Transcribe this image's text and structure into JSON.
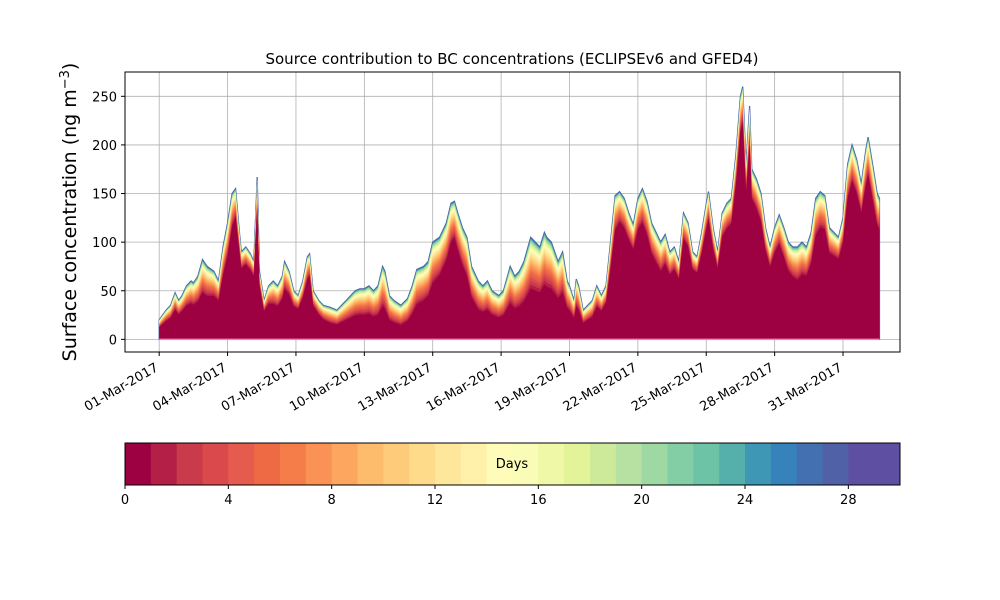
{
  "chart_data": {
    "type": "area",
    "title": "Source contribution to BC concentrations (ECLIPSEv6 and GFED4)",
    "ylabel_main": "Surface concentration (ng m",
    "ylabel_sup": "−3",
    "ylabel_close": ")",
    "xlabel": "",
    "ylim": [
      -13,
      275
    ],
    "y_ticks": [
      0,
      50,
      100,
      150,
      200,
      250
    ],
    "x_ticks": [
      "01-Mar-2017",
      "04-Mar-2017",
      "07-Mar-2017",
      "10-Mar-2017",
      "13-Mar-2017",
      "16-Mar-2017",
      "19-Mar-2017",
      "22-Mar-2017",
      "25-Mar-2017",
      "28-Mar-2017",
      "31-Mar-2017"
    ],
    "x_range_days": [
      -1.5,
      32.5
    ],
    "grid": true,
    "series_note": "stacked contributions by emission age (days 0-30)",
    "total": [
      [
        0.0,
        20
      ],
      [
        0.3,
        30
      ],
      [
        0.5,
        35
      ],
      [
        0.7,
        48
      ],
      [
        0.85,
        40
      ],
      [
        1.0,
        45
      ],
      [
        1.2,
        55
      ],
      [
        1.4,
        60
      ],
      [
        1.5,
        58
      ],
      [
        1.7,
        65
      ],
      [
        1.9,
        82
      ],
      [
        2.1,
        75
      ],
      [
        2.4,
        70
      ],
      [
        2.6,
        60
      ],
      [
        2.8,
        95
      ],
      [
        3.0,
        120
      ],
      [
        3.2,
        150
      ],
      [
        3.35,
        155
      ],
      [
        3.5,
        115
      ],
      [
        3.6,
        90
      ],
      [
        3.8,
        95
      ],
      [
        4.0,
        88
      ],
      [
        4.15,
        80
      ],
      [
        4.3,
        167
      ],
      [
        4.4,
        70
      ],
      [
        4.6,
        40
      ],
      [
        4.8,
        55
      ],
      [
        5.0,
        60
      ],
      [
        5.2,
        55
      ],
      [
        5.4,
        65
      ],
      [
        5.5,
        80
      ],
      [
        5.7,
        70
      ],
      [
        5.9,
        50
      ],
      [
        6.1,
        45
      ],
      [
        6.3,
        60
      ],
      [
        6.5,
        85
      ],
      [
        6.6,
        88
      ],
      [
        6.75,
        50
      ],
      [
        7.0,
        40
      ],
      [
        7.2,
        35
      ],
      [
        7.5,
        33
      ],
      [
        7.8,
        30
      ],
      [
        8.0,
        35
      ],
      [
        8.2,
        40
      ],
      [
        8.4,
        45
      ],
      [
        8.6,
        50
      ],
      [
        8.8,
        52
      ],
      [
        9.0,
        52
      ],
      [
        9.2,
        55
      ],
      [
        9.4,
        50
      ],
      [
        9.6,
        55
      ],
      [
        9.8,
        75
      ],
      [
        9.9,
        70
      ],
      [
        10.1,
        45
      ],
      [
        10.3,
        40
      ],
      [
        10.6,
        35
      ],
      [
        10.9,
        42
      ],
      [
        11.1,
        55
      ],
      [
        11.3,
        72
      ],
      [
        11.6,
        75
      ],
      [
        11.8,
        80
      ],
      [
        12.0,
        100
      ],
      [
        12.3,
        105
      ],
      [
        12.6,
        120
      ],
      [
        12.8,
        140
      ],
      [
        12.95,
        142
      ],
      [
        13.1,
        130
      ],
      [
        13.3,
        115
      ],
      [
        13.5,
        105
      ],
      [
        13.7,
        75
      ],
      [
        14.0,
        60
      ],
      [
        14.2,
        55
      ],
      [
        14.4,
        60
      ],
      [
        14.6,
        50
      ],
      [
        14.9,
        45
      ],
      [
        15.1,
        50
      ],
      [
        15.4,
        75
      ],
      [
        15.6,
        65
      ],
      [
        15.8,
        70
      ],
      [
        16.0,
        80
      ],
      [
        16.3,
        105
      ],
      [
        16.5,
        100
      ],
      [
        16.7,
        95
      ],
      [
        16.9,
        110
      ],
      [
        17.0,
        105
      ],
      [
        17.2,
        100
      ],
      [
        17.5,
        80
      ],
      [
        17.7,
        90
      ],
      [
        17.9,
        60
      ],
      [
        18.0,
        55
      ],
      [
        18.2,
        40
      ],
      [
        18.3,
        62
      ],
      [
        18.4,
        55
      ],
      [
        18.6,
        30
      ],
      [
        18.8,
        35
      ],
      [
        19.0,
        40
      ],
      [
        19.2,
        55
      ],
      [
        19.4,
        45
      ],
      [
        19.6,
        55
      ],
      [
        19.8,
        100
      ],
      [
        20.0,
        148
      ],
      [
        20.2,
        152
      ],
      [
        20.4,
        145
      ],
      [
        20.6,
        130
      ],
      [
        20.8,
        118
      ],
      [
        21.0,
        145
      ],
      [
        21.2,
        155
      ],
      [
        21.4,
        142
      ],
      [
        21.6,
        120
      ],
      [
        21.8,
        110
      ],
      [
        22.0,
        100
      ],
      [
        22.2,
        108
      ],
      [
        22.4,
        90
      ],
      [
        22.6,
        95
      ],
      [
        22.8,
        80
      ],
      [
        23.0,
        130
      ],
      [
        23.2,
        120
      ],
      [
        23.4,
        90
      ],
      [
        23.6,
        85
      ],
      [
        23.8,
        110
      ],
      [
        24.0,
        140
      ],
      [
        24.1,
        152
      ],
      [
        24.3,
        115
      ],
      [
        24.5,
        90
      ],
      [
        24.7,
        130
      ],
      [
        24.9,
        140
      ],
      [
        25.1,
        145
      ],
      [
        25.3,
        190
      ],
      [
        25.5,
        250
      ],
      [
        25.6,
        260
      ],
      [
        25.75,
        180
      ],
      [
        25.9,
        240
      ],
      [
        26.0,
        175
      ],
      [
        26.2,
        165
      ],
      [
        26.4,
        150
      ],
      [
        26.6,
        115
      ],
      [
        26.8,
        95
      ],
      [
        27.0,
        115
      ],
      [
        27.2,
        128
      ],
      [
        27.4,
        115
      ],
      [
        27.6,
        100
      ],
      [
        27.8,
        95
      ],
      [
        28.0,
        95
      ],
      [
        28.2,
        100
      ],
      [
        28.4,
        95
      ],
      [
        28.6,
        110
      ],
      [
        28.8,
        145
      ],
      [
        29.0,
        152
      ],
      [
        29.2,
        148
      ],
      [
        29.4,
        115
      ],
      [
        29.6,
        110
      ],
      [
        29.8,
        105
      ],
      [
        30.0,
        125
      ],
      [
        30.2,
        180
      ],
      [
        30.4,
        200
      ],
      [
        30.6,
        185
      ],
      [
        30.8,
        160
      ],
      [
        31.0,
        195
      ],
      [
        31.1,
        208
      ],
      [
        31.3,
        180
      ],
      [
        31.5,
        150
      ],
      [
        31.6,
        145
      ]
    ],
    "young_fraction": [
      [
        0.0,
        0.6
      ],
      [
        1.0,
        0.62
      ],
      [
        2.0,
        0.55
      ],
      [
        3.0,
        0.7
      ],
      [
        3.35,
        0.8
      ],
      [
        4.3,
        0.8
      ],
      [
        5.0,
        0.58
      ],
      [
        6.6,
        0.72
      ],
      [
        7.5,
        0.48
      ],
      [
        9.0,
        0.45
      ],
      [
        10.6,
        0.38
      ],
      [
        12.0,
        0.55
      ],
      [
        12.95,
        0.72
      ],
      [
        14.0,
        0.48
      ],
      [
        16.0,
        0.45
      ],
      [
        17.0,
        0.48
      ],
      [
        18.3,
        0.52
      ],
      [
        19.0,
        0.55
      ],
      [
        20.2,
        0.78
      ],
      [
        21.2,
        0.76
      ],
      [
        22.0,
        0.68
      ],
      [
        23.0,
        0.78
      ],
      [
        24.1,
        0.8
      ],
      [
        25.0,
        0.8
      ],
      [
        25.6,
        0.85
      ],
      [
        25.9,
        0.82
      ],
      [
        27.2,
        0.75
      ],
      [
        28.0,
        0.62
      ],
      [
        29.0,
        0.74
      ],
      [
        30.4,
        0.8
      ],
      [
        31.1,
        0.8
      ],
      [
        31.6,
        0.76
      ]
    ],
    "colorbar": {
      "label": "Days",
      "min": 0,
      "max": 30,
      "ticks": [
        0,
        4,
        8,
        12,
        16,
        20,
        24,
        28
      ],
      "colors": [
        "#9e0142",
        "#b41f47",
        "#c93a4b",
        "#da4a4c",
        "#e55b4e",
        "#ee6a45",
        "#f57d4a",
        "#f99254",
        "#fca65f",
        "#fdbb6c",
        "#fdcb79",
        "#fedb8b",
        "#fee69b",
        "#fff1aa",
        "#fffbb9",
        "#f8fcb6",
        "#eef8a6",
        "#e2f398",
        "#cdea9b",
        "#b7e1a2",
        "#9ed9a3",
        "#83cea4",
        "#6cc3a5",
        "#55b0ab",
        "#3e98b5",
        "#3682ba",
        "#4270b1",
        "#5161a8",
        "#5e4fa2",
        "#5e4fa2"
      ]
    }
  }
}
